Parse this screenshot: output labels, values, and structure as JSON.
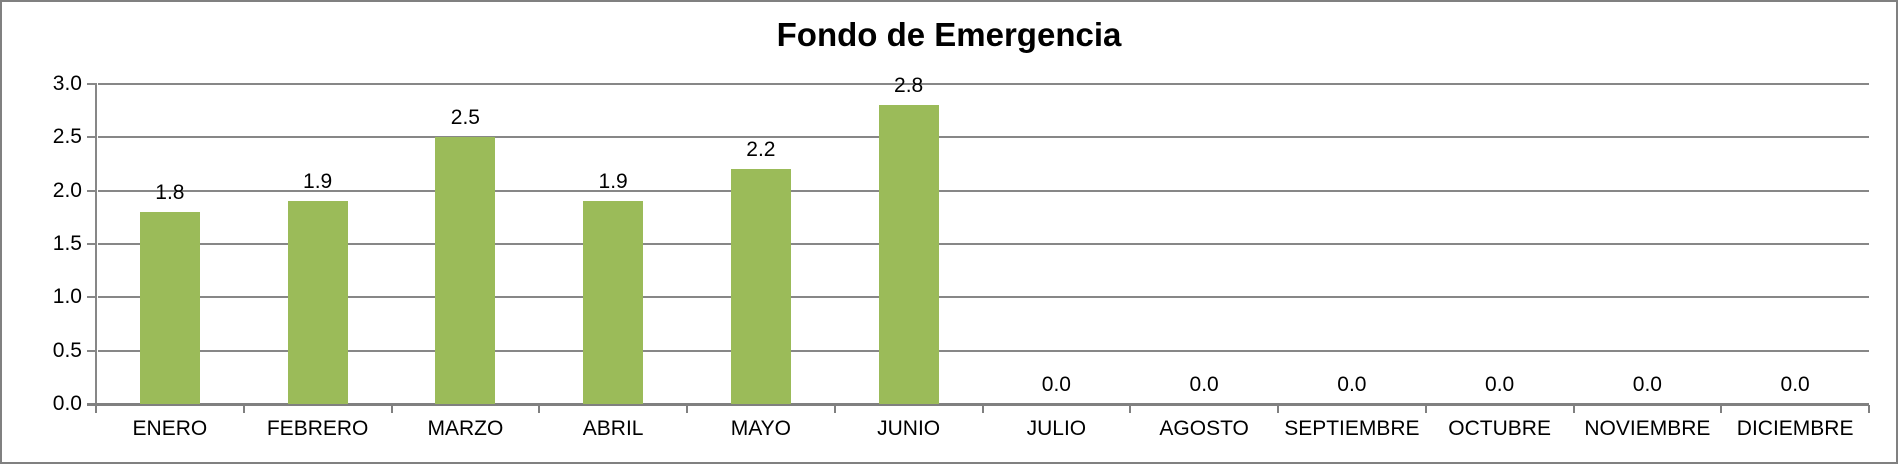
{
  "chart_data": {
    "type": "bar",
    "title": "Fondo de Emergencia",
    "categories": [
      "ENERO",
      "FEBRERO",
      "MARZO",
      "ABRIL",
      "MAYO",
      "JUNIO",
      "JULIO",
      "AGOSTO",
      "SEPTIEMBRE",
      "OCTUBRE",
      "NOVIEMBRE",
      "DICIEMBRE"
    ],
    "values": [
      1.8,
      1.9,
      2.5,
      1.9,
      2.2,
      2.8,
      0.0,
      0.0,
      0.0,
      0.0,
      0.0,
      0.0
    ],
    "data_labels": [
      "1.8",
      "1.9",
      "2.5",
      "1.9",
      "2.2",
      "2.8",
      "0.0",
      "0.0",
      "0.0",
      "0.0",
      "0.0",
      "0.0"
    ],
    "xlabel": "",
    "ylabel": "",
    "ylim": [
      0,
      3.0
    ],
    "ytick_labels": [
      "0.0",
      "0.5",
      "1.0",
      "1.5",
      "2.0",
      "2.5",
      "3.0"
    ],
    "grid": true,
    "legend": "none",
    "bar_color": "#9BBB59"
  },
  "colors": {
    "bar_fill": "#9BBB59",
    "gridline": "#878787",
    "axis_line": "#808080",
    "text": "#000000",
    "frame_border": "#808080",
    "background": "#FFFFFF"
  }
}
